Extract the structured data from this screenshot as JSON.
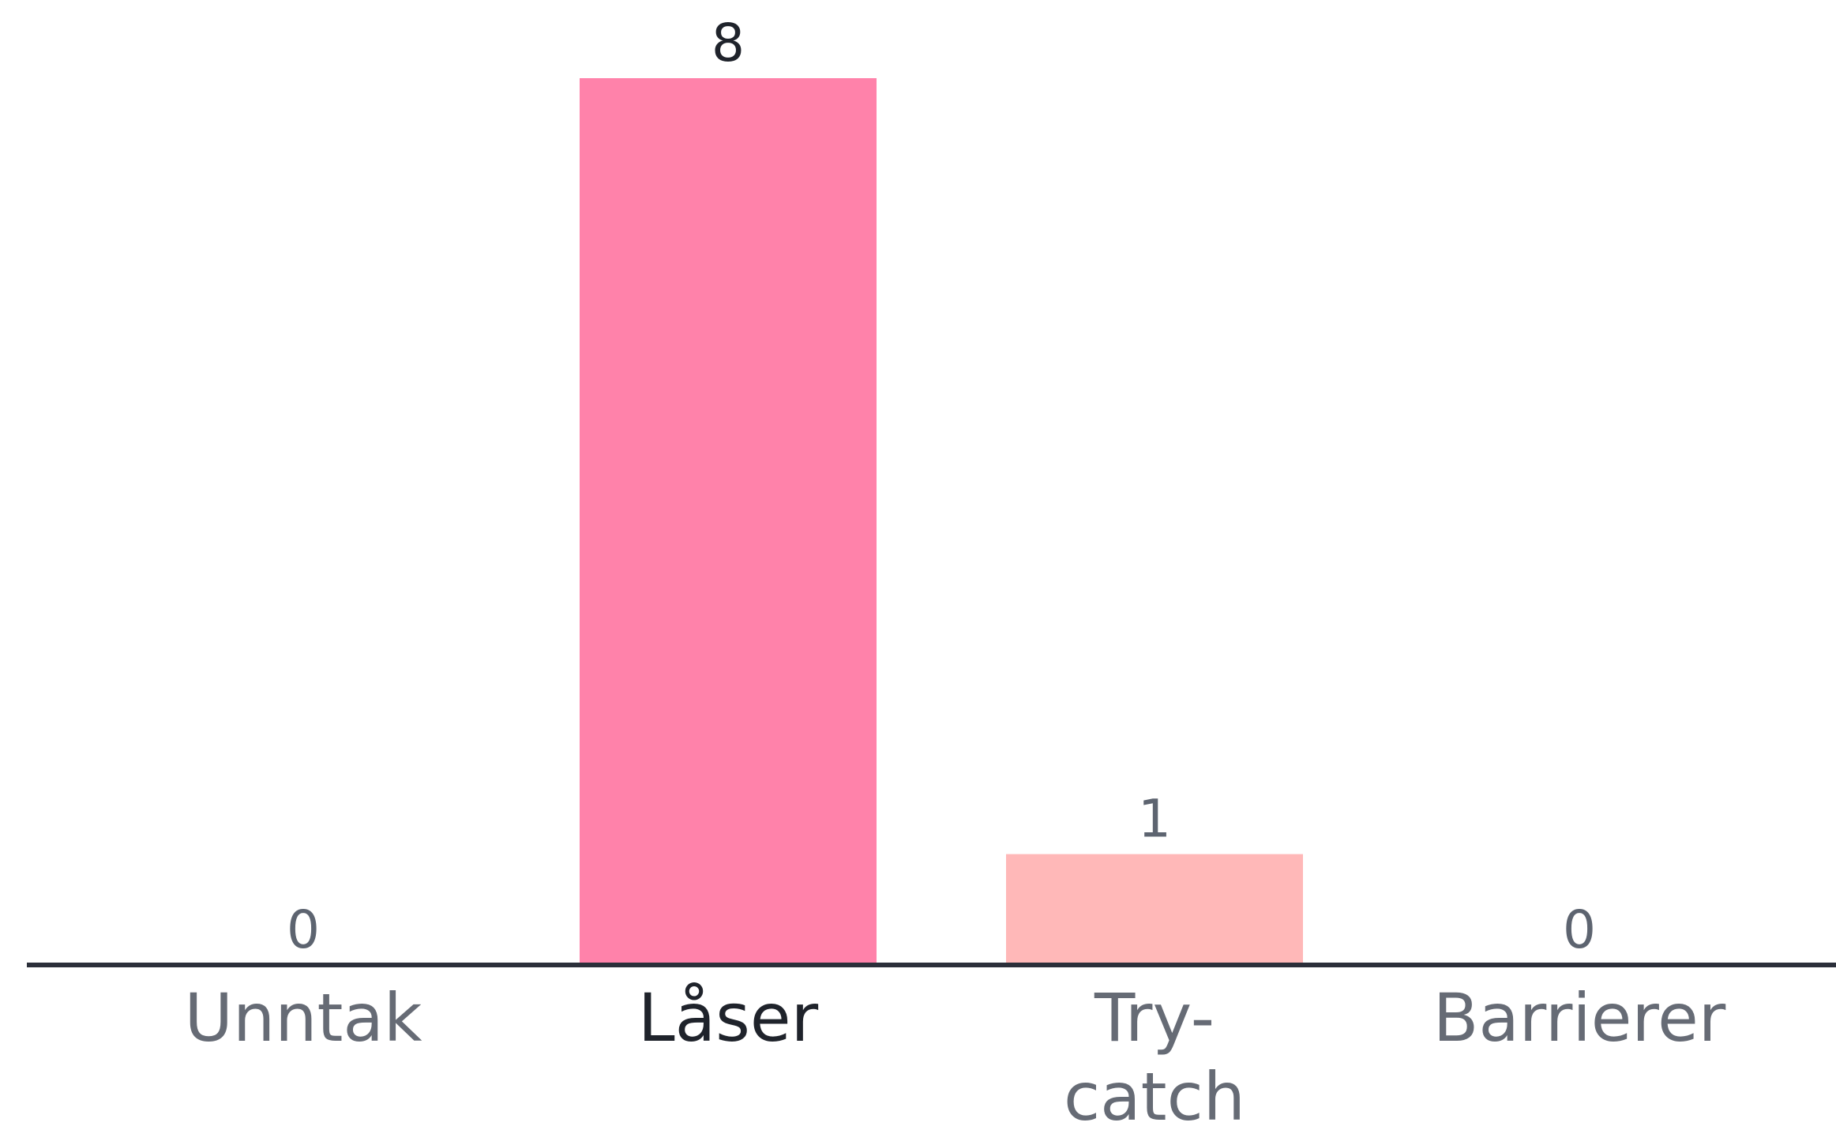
{
  "chart_data": {
    "type": "bar",
    "categories": [
      [
        "Unntak"
      ],
      [
        "Låser"
      ],
      [
        "Try-",
        "catch"
      ],
      [
        "Barrierer"
      ]
    ],
    "values": [
      0,
      8,
      1,
      0
    ],
    "value_labels": [
      "0",
      "8",
      "1",
      "0"
    ],
    "ylim": [
      0,
      8
    ],
    "grid": false,
    "legend": "none",
    "highlighted_category_index": 1,
    "colors": {
      "bars": [
        "#ff82aa",
        "#ff82aa",
        "#ffb8b8",
        "#ff82aa"
      ],
      "axis": "#2b2f3a",
      "value_label": "#5d6470",
      "value_label_highlight": "#1f232b",
      "tick_label": "#666b75",
      "tick_label_highlight": "#1f232b"
    }
  }
}
